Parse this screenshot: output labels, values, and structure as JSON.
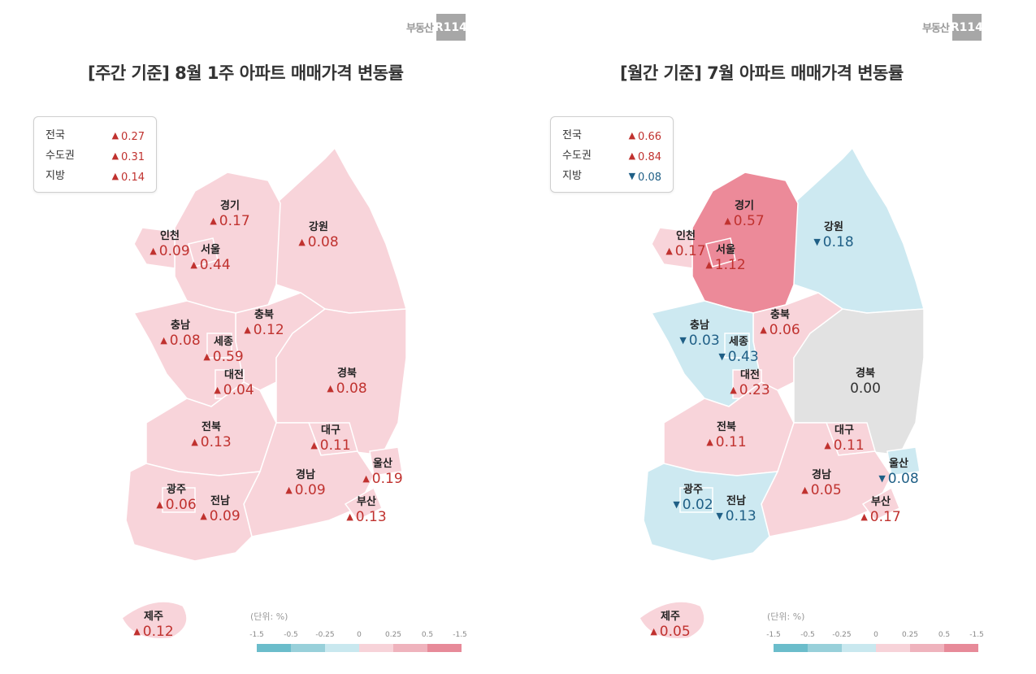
{
  "logo": {
    "text": "부동산",
    "box": "R114"
  },
  "weekly": {
    "title": "[주간 기준] 8월 1주 아파트 매매가격 변동률",
    "summary": [
      {
        "label": "전국",
        "dir": "up",
        "value": "0.27"
      },
      {
        "label": "수도권",
        "dir": "up",
        "value": "0.31"
      },
      {
        "label": "지방",
        "dir": "up",
        "value": "0.14"
      }
    ],
    "regions": {
      "gyeonggi": {
        "name": "경기",
        "dir": "up",
        "value": "0.17"
      },
      "gangwon": {
        "name": "강원",
        "dir": "up",
        "value": "0.08"
      },
      "incheon": {
        "name": "인천",
        "dir": "up",
        "value": "0.09"
      },
      "seoul": {
        "name": "서울",
        "dir": "up",
        "value": "0.44"
      },
      "chungbuk": {
        "name": "충북",
        "dir": "up",
        "value": "0.12"
      },
      "chungnam": {
        "name": "충남",
        "dir": "up",
        "value": "0.08"
      },
      "sejong": {
        "name": "세종",
        "dir": "up",
        "value": "0.59"
      },
      "daejeon": {
        "name": "대전",
        "dir": "up",
        "value": "0.04"
      },
      "gyeongbuk": {
        "name": "경북",
        "dir": "up",
        "value": "0.08"
      },
      "jeonbuk": {
        "name": "전북",
        "dir": "up",
        "value": "0.13"
      },
      "daegu": {
        "name": "대구",
        "dir": "up",
        "value": "0.11"
      },
      "ulsan": {
        "name": "울산",
        "dir": "up",
        "value": "0.19"
      },
      "gyeongnam": {
        "name": "경남",
        "dir": "up",
        "value": "0.09"
      },
      "gwangju": {
        "name": "광주",
        "dir": "up",
        "value": "0.06"
      },
      "jeonnam": {
        "name": "전남",
        "dir": "up",
        "value": "0.09"
      },
      "busan": {
        "name": "부산",
        "dir": "up",
        "value": "0.13"
      },
      "jeju": {
        "name": "제주",
        "dir": "up",
        "value": "0.12"
      }
    }
  },
  "monthly": {
    "title": "[월간 기준] 7월 아파트 매매가격 변동률",
    "summary": [
      {
        "label": "전국",
        "dir": "up",
        "value": "0.66"
      },
      {
        "label": "수도권",
        "dir": "up",
        "value": "0.84"
      },
      {
        "label": "지방",
        "dir": "down",
        "value": "0.08"
      }
    ],
    "regions": {
      "gyeonggi": {
        "name": "경기",
        "dir": "up",
        "value": "0.57"
      },
      "gangwon": {
        "name": "강원",
        "dir": "down",
        "value": "0.18"
      },
      "incheon": {
        "name": "인천",
        "dir": "up",
        "value": "0.17"
      },
      "seoul": {
        "name": "서울",
        "dir": "up",
        "value": "1.12"
      },
      "chungbuk": {
        "name": "충북",
        "dir": "up",
        "value": "0.06"
      },
      "chungnam": {
        "name": "충남",
        "dir": "down",
        "value": "0.03"
      },
      "sejong": {
        "name": "세종",
        "dir": "down",
        "value": "0.43"
      },
      "daejeon": {
        "name": "대전",
        "dir": "up",
        "value": "0.23"
      },
      "gyeongbuk": {
        "name": "경북",
        "dir": "none",
        "value": "0.00"
      },
      "jeonbuk": {
        "name": "전북",
        "dir": "up",
        "value": "0.11"
      },
      "daegu": {
        "name": "대구",
        "dir": "up",
        "value": "0.11"
      },
      "ulsan": {
        "name": "울산",
        "dir": "down",
        "value": "0.08"
      },
      "gyeongnam": {
        "name": "경남",
        "dir": "up",
        "value": "0.05"
      },
      "gwangju": {
        "name": "광주",
        "dir": "down",
        "value": "0.02"
      },
      "jeonnam": {
        "name": "전남",
        "dir": "down",
        "value": "0.13"
      },
      "busan": {
        "name": "부산",
        "dir": "up",
        "value": "0.17"
      },
      "jeju": {
        "name": "제주",
        "dir": "up",
        "value": "0.05"
      }
    }
  },
  "legend": {
    "unit": "(단위: %)",
    "ticks": [
      "-1.5",
      "-0.5",
      "-0.25",
      "0",
      "0.25",
      "0.5",
      "-1.5"
    ],
    "colors": [
      "#6bbdcb",
      "#98d0da",
      "#c9e8ef",
      "#f7d3d9",
      "#efb3bd",
      "#e78a99"
    ]
  },
  "fill_colors": {
    "light_pink": "#f8d4da",
    "dark_pink": "#ec8a99",
    "light_blue": "#cde9f1",
    "gray": "#e2e2e2"
  },
  "arrows": {
    "up": "▲",
    "down": "▼"
  }
}
